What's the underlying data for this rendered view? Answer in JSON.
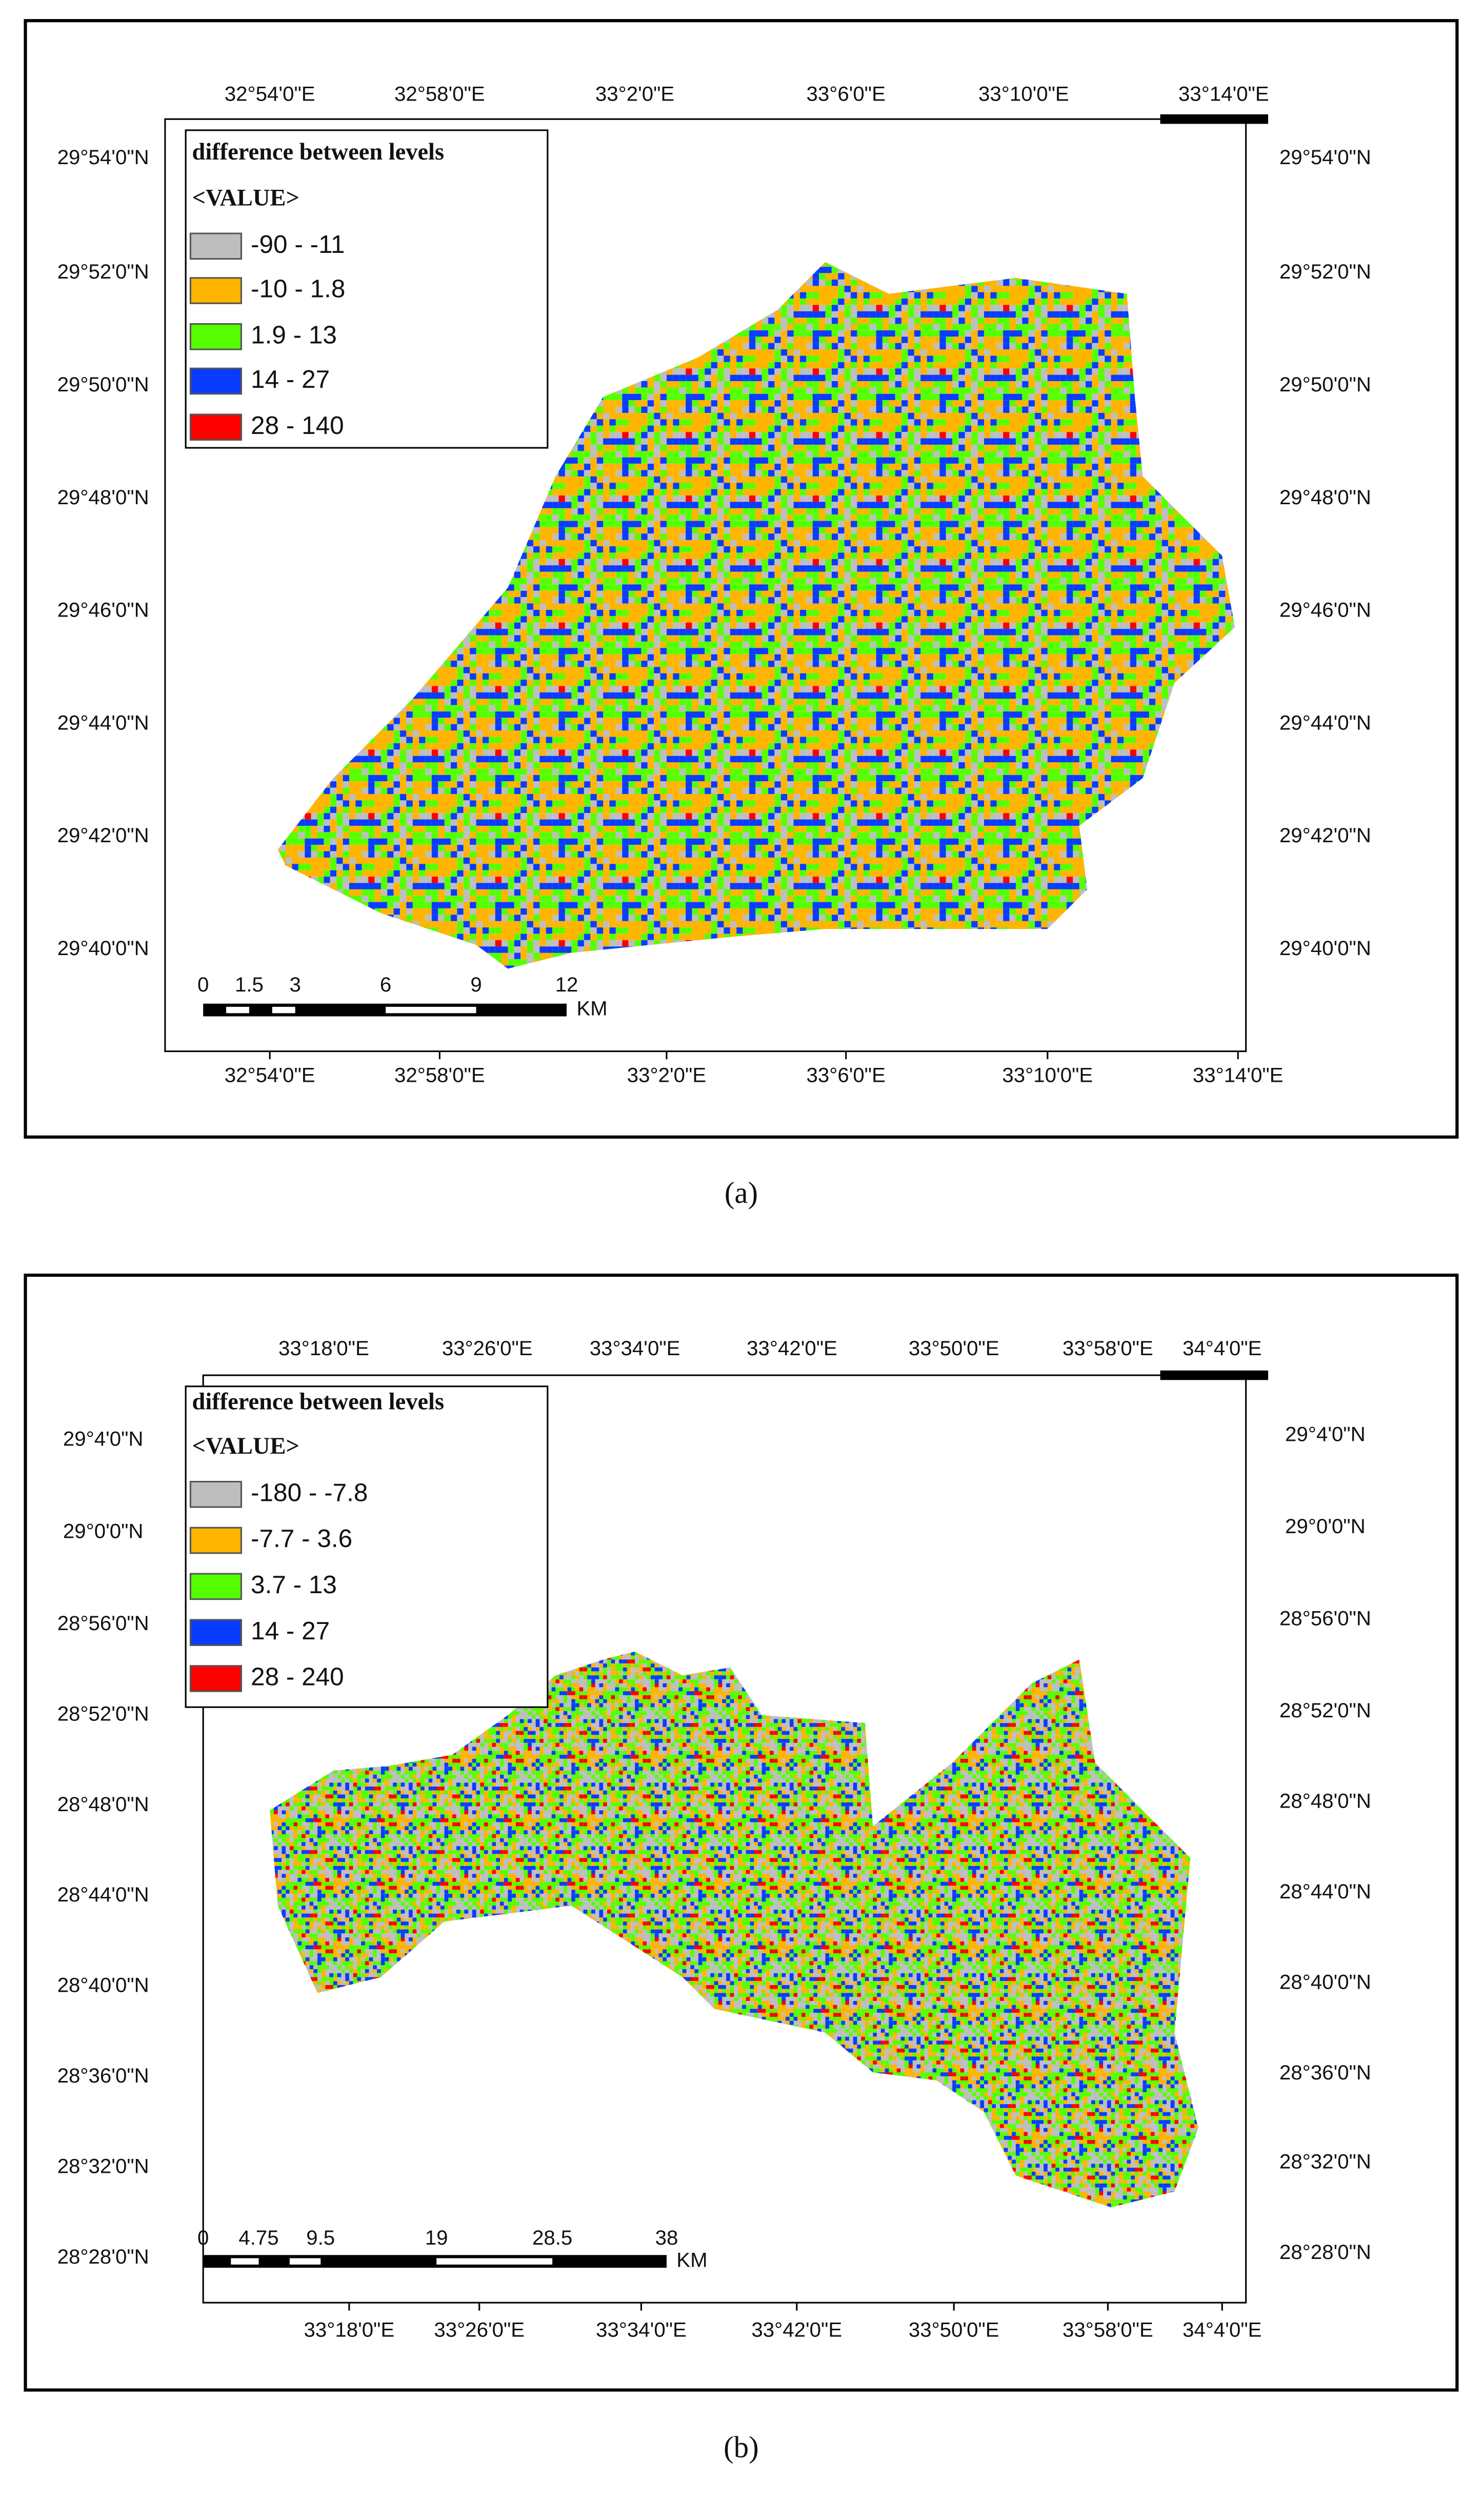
{
  "panels": [
    {
      "caption": "(a)",
      "top_ticks": [
        "32°54'0\"E",
        "32°58'0\"E",
        "33°2'0\"E",
        "33°6'0\"E",
        "33°10'0\"E",
        "33°14'0\"E"
      ],
      "bottom_ticks": [
        "32°54'0\"E",
        "32°58'0\"E",
        "33°2'0\"E",
        "33°6'0\"E",
        "33°10'0\"E",
        "33°14'0\"E"
      ],
      "left_ticks": [
        "29°54'0\"N",
        "29°52'0\"N",
        "29°50'0\"N",
        "29°48'0\"N",
        "29°46'0\"N",
        "29°44'0\"N",
        "29°42'0\"N",
        "29°40'0\"N"
      ],
      "right_ticks": [
        "29°54'0\"N",
        "29°52'0\"N",
        "29°50'0\"N",
        "29°48'0\"N",
        "29°46'0\"N",
        "29°44'0\"N",
        "29°42'0\"N",
        "29°40'0\"N"
      ],
      "legend": {
        "title": "difference between levels",
        "subtitle": "<VALUE>",
        "items": [
          {
            "label": "-90 - -11",
            "color": "#bebebe"
          },
          {
            "label": "-10 - 1.8",
            "color": "#ffb400"
          },
          {
            "label": "1.9 - 13",
            "color": "#55ff00"
          },
          {
            "label": "14 - 27",
            "color": "#0a3cff"
          },
          {
            "label": "28 - 140",
            "color": "#ff0000"
          }
        ]
      },
      "scale_bar": {
        "labels": [
          "0",
          "1.5",
          "3",
          "6",
          "9",
          "12"
        ],
        "unit": "KM"
      }
    },
    {
      "caption": "(b)",
      "top_ticks": [
        "33°18'0\"E",
        "33°26'0\"E",
        "33°34'0\"E",
        "33°42'0\"E",
        "33°50'0\"E",
        "33°58'0\"E",
        "34°4'0\"E"
      ],
      "bottom_ticks": [
        "33°18'0\"E",
        "33°26'0\"E",
        "33°34'0\"E",
        "33°42'0\"E",
        "33°50'0\"E",
        "33°58'0\"E",
        "34°4'0\"E"
      ],
      "left_ticks": [
        "29°4'0\"N",
        "29°0'0\"N",
        "28°56'0\"N",
        "28°52'0\"N",
        "28°48'0\"N",
        "28°44'0\"N",
        "28°40'0\"N",
        "28°36'0\"N",
        "28°32'0\"N",
        "28°28'0\"N"
      ],
      "right_ticks": [
        "29°4'0\"N",
        "29°0'0\"N",
        "28°56'0\"N",
        "28°52'0\"N",
        "28°48'0\"N",
        "28°44'0\"N",
        "28°40'0\"N",
        "28°36'0\"N",
        "28°32'0\"N",
        "28°28'0\"N"
      ],
      "legend": {
        "title": "difference between levels",
        "subtitle": "<VALUE>",
        "items": [
          {
            "label": "-180 - -7.8",
            "color": "#bebebe"
          },
          {
            "label": "-7.7 - 3.6",
            "color": "#ffb400"
          },
          {
            "label": "3.7 - 13",
            "color": "#55ff00"
          },
          {
            "label": "14 - 27",
            "color": "#0a3cff"
          },
          {
            "label": "28 - 240",
            "color": "#ff0000"
          }
        ]
      },
      "scale_bar": {
        "labels": [
          "0",
          "4.75",
          "9.5",
          "19",
          "28.5",
          "38"
        ],
        "unit": "KM"
      }
    }
  ]
}
